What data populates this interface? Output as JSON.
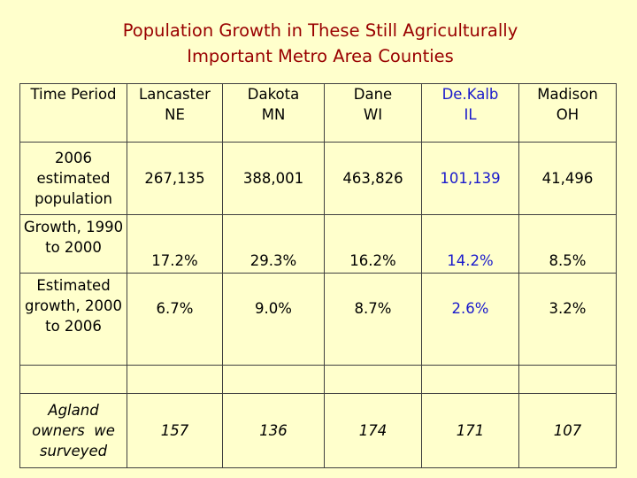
{
  "title_line1": "Population Growth in These Still Agriculturally",
  "title_line2": "Important Metro Area Counties",
  "accent_color": "#990000",
  "highlight_color": "#1a1acc",
  "header": {
    "time_period": "Time Period",
    "columns": [
      {
        "name": "Lancaster",
        "state": "NE"
      },
      {
        "name": "Dakota",
        "state": "MN"
      },
      {
        "name": "Dane",
        "state": "WI"
      },
      {
        "name": "De.Kalb",
        "state": "IL"
      },
      {
        "name": "Madison",
        "state": "OH"
      }
    ]
  },
  "rows": [
    {
      "label_lines": [
        "2006",
        "estimated",
        "population"
      ],
      "values": [
        "267,135",
        "388,001",
        "463,826",
        "101,139",
        "41,496"
      ]
    },
    {
      "label_lines": [
        "Growth, 1990",
        "to 2000"
      ],
      "values": [
        "17.2%",
        "29.3%",
        "16.2%",
        "14.2%",
        "8.5%"
      ]
    },
    {
      "label_lines": [
        "Estimated",
        "growth, 2000",
        "to 2006"
      ],
      "values": [
        "6.7%",
        "9.0%",
        "8.7%",
        "2.6%",
        "3.2%"
      ]
    },
    {
      "label_lines": [
        "Agland",
        "owners  we",
        "surveyed"
      ],
      "values": [
        "157",
        "136",
        "174",
        "171",
        "107"
      ]
    }
  ]
}
